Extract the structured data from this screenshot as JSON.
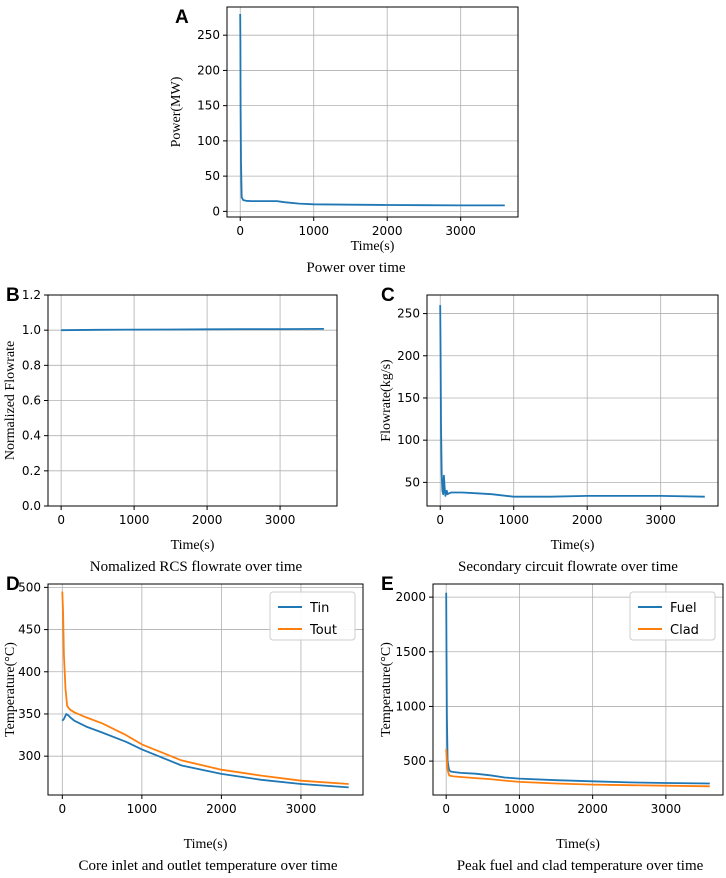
{
  "colors": {
    "blue": "#1f77b4",
    "orange": "#ff7f0e",
    "grid": "#b0b0b0"
  },
  "chart_data": [
    {
      "id": "A",
      "type": "line",
      "panel_label": "A",
      "title": "Power over time",
      "xlabel": "Time(s)",
      "ylabel": "Power(MW)",
      "xlim": [
        -180,
        3780
      ],
      "ylim": [
        -8,
        290
      ],
      "xticks": [
        0,
        1000,
        2000,
        3000
      ],
      "yticks": [
        0,
        50,
        100,
        150,
        200,
        250
      ],
      "grid": true,
      "legend": null,
      "series": [
        {
          "name": "Power",
          "color": "#1f77b4",
          "x": [
            0,
            2,
            5,
            10,
            20,
            40,
            80,
            150,
            300,
            500,
            600,
            800,
            1000,
            1500,
            2000,
            2500,
            3000,
            3600
          ],
          "y": [
            280,
            240,
            150,
            70,
            20,
            16,
            15,
            14.5,
            14.5,
            14.5,
            13,
            11,
            10,
            9.5,
            9,
            8.8,
            8.5,
            8.5
          ]
        }
      ]
    },
    {
      "id": "B",
      "type": "line",
      "panel_label": "B",
      "title": "Nomalized RCS flowrate over time",
      "xlabel": "Time(s)",
      "ylabel": "Normalized Flowrate",
      "xlim": [
        -180,
        3780
      ],
      "ylim": [
        0,
        1.2
      ],
      "xticks": [
        0,
        1000,
        2000,
        3000
      ],
      "yticks": [
        0.0,
        0.2,
        0.4,
        0.6,
        0.8,
        1.0,
        1.2
      ],
      "ytick_labels": [
        "0.0",
        "0.2",
        "0.4",
        "0.6",
        "0.8",
        "1.0",
        "1.2"
      ],
      "grid": true,
      "legend": null,
      "series": [
        {
          "name": "Normalized Flowrate",
          "color": "#1f77b4",
          "x": [
            0,
            500,
            1000,
            1500,
            2000,
            2500,
            3000,
            3600
          ],
          "y": [
            1.0,
            1.002,
            1.003,
            1.004,
            1.005,
            1.006,
            1.006,
            1.007
          ]
        }
      ]
    },
    {
      "id": "C",
      "type": "line",
      "panel_label": "C",
      "title": "Secondary circuit flowrate over time",
      "xlabel": "Time(s)",
      "ylabel": "Flowrate(kg/s)",
      "xlim": [
        -180,
        3780
      ],
      "ylim": [
        22,
        272
      ],
      "xticks": [
        0,
        1000,
        2000,
        3000
      ],
      "yticks": [
        50,
        100,
        150,
        200,
        250
      ],
      "grid": true,
      "legend": null,
      "series": [
        {
          "name": "Flowrate",
          "color": "#1f77b4",
          "x": [
            0,
            5,
            10,
            20,
            30,
            40,
            50,
            60,
            70,
            80,
            90,
            100,
            120,
            150,
            300,
            500,
            700,
            1000,
            1500,
            2000,
            2500,
            3000,
            3600
          ],
          "y": [
            260,
            200,
            120,
            60,
            40,
            36,
            58,
            45,
            34,
            37,
            40,
            36,
            37,
            38,
            38,
            37,
            36,
            33,
            33,
            34,
            34,
            34,
            33
          ]
        }
      ]
    },
    {
      "id": "D",
      "type": "line",
      "panel_label": "D",
      "title": "Core inlet and outlet temperature over time",
      "xlabel": "Time(s)",
      "ylabel": "Temperature(°C)",
      "xlim": [
        -180,
        3780
      ],
      "ylim": [
        254,
        504
      ],
      "xticks": [
        0,
        1000,
        2000,
        3000
      ],
      "yticks": [
        300,
        350,
        400,
        450,
        500
      ],
      "grid": true,
      "legend": "top-right",
      "series": [
        {
          "name": "Tin",
          "color": "#1f77b4",
          "x": [
            0,
            20,
            50,
            80,
            100,
            150,
            300,
            500,
            800,
            1000,
            1500,
            2000,
            2500,
            3000,
            3600
          ],
          "y": [
            342,
            344,
            350,
            348,
            346,
            342,
            335,
            328,
            317,
            308,
            289,
            279,
            272,
            267,
            263
          ]
        },
        {
          "name": "Tout",
          "color": "#ff7f0e",
          "x": [
            0,
            10,
            20,
            40,
            60,
            80,
            100,
            150,
            300,
            500,
            800,
            1000,
            1500,
            2000,
            2500,
            3000,
            3600
          ],
          "y": [
            495,
            470,
            420,
            380,
            360,
            357,
            355,
            352,
            346,
            339,
            325,
            314,
            295,
            284,
            277,
            271,
            267
          ]
        }
      ]
    },
    {
      "id": "E",
      "type": "line",
      "panel_label": "E",
      "title": "Peak fuel and clad temperature over time",
      "xlabel": "Time(s)",
      "ylabel": "Temperature(°C)",
      "xlim": [
        -180,
        3780
      ],
      "ylim": [
        190,
        2120
      ],
      "xticks": [
        0,
        1000,
        2000,
        3000
      ],
      "yticks": [
        500,
        1000,
        1500,
        2000
      ],
      "grid": true,
      "legend": "top-right",
      "series": [
        {
          "name": "Fuel",
          "color": "#1f77b4",
          "x": [
            0,
            5,
            10,
            20,
            40,
            60,
            100,
            200,
            400,
            600,
            800,
            1000,
            1500,
            2000,
            2500,
            3000,
            3600
          ],
          "y": [
            2040,
            1500,
            900,
            500,
            420,
            405,
            400,
            392,
            385,
            370,
            350,
            340,
            325,
            315,
            305,
            300,
            295
          ]
        },
        {
          "name": "Clad",
          "color": "#ff7f0e",
          "x": [
            0,
            10,
            20,
            40,
            60,
            100,
            200,
            400,
            600,
            800,
            1000,
            1500,
            2000,
            2500,
            3000,
            3600
          ],
          "y": [
            610,
            500,
            420,
            370,
            365,
            360,
            355,
            345,
            335,
            322,
            310,
            295,
            285,
            280,
            275,
            270
          ]
        }
      ]
    }
  ]
}
